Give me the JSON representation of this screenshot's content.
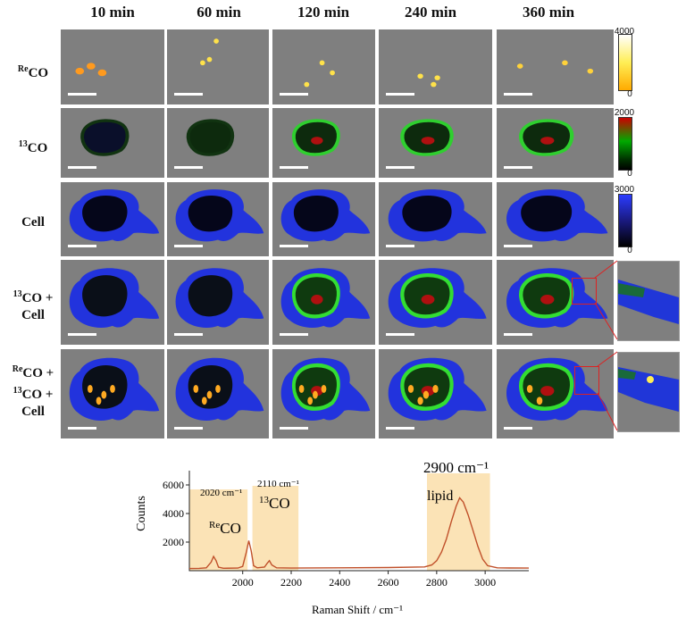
{
  "columns": [
    "10 min",
    "60 min",
    "120 min",
    "240 min",
    "360 min"
  ],
  "rows": [
    {
      "pre": "",
      "sup": "Re",
      "main": "CO",
      "line2_sup": "",
      "line2": "",
      "line3": ""
    },
    {
      "pre": "",
      "sup": "13",
      "main": "CO",
      "line2_sup": "",
      "line2": "",
      "line3": ""
    },
    {
      "pre": "",
      "sup": "",
      "main": "Cell",
      "line2_sup": "",
      "line2": "",
      "line3": ""
    },
    {
      "pre": "",
      "sup": "13",
      "main": "CO +",
      "line2_sup": "",
      "line2": "Cell",
      "line3": ""
    },
    {
      "pre": "",
      "sup": "Re",
      "main": "CO +",
      "line2_sup": "13",
      "line2": "CO +",
      "line3": "Cell"
    }
  ],
  "colorbars": [
    {
      "max": "4000",
      "min": "0",
      "colors": [
        "#ffffff",
        "#ffee55",
        "#ffaa00"
      ]
    },
    {
      "max": "2000",
      "min": "0",
      "colors": [
        "#cc0000",
        "#00aa00",
        "#000000"
      ]
    },
    {
      "max": "3000",
      "min": "0",
      "colors": [
        "#2b3cff",
        "#1a1a80",
        "#000000"
      ]
    }
  ],
  "spectrum": {
    "labels": {
      "peak1_wavenumber": "2020 cm⁻¹",
      "peak1_species_sup": "Re",
      "peak1_species": "CO",
      "peak2_wavenumber": "2110 cm⁻¹",
      "peak2_species_sup": "13",
      "peak2_species": "CO",
      "peak3_wavenumber": "2900 cm⁻¹",
      "peak3_species": "lipid"
    }
  },
  "chart_data": {
    "type": "line",
    "xlabel": "Raman Shift / cm⁻¹",
    "ylabel": "Counts",
    "xlim": [
      1780,
      3180
    ],
    "ylim": [
      0,
      7000
    ],
    "xticks": [
      2000,
      2200,
      2400,
      2600,
      2800,
      3000
    ],
    "yticks": [
      2000,
      4000,
      6000
    ],
    "highlight_bands": [
      [
        1780,
        2020
      ],
      [
        2040,
        2230
      ],
      [
        2760,
        3020
      ]
    ],
    "line_color": "#c0502a",
    "x": [
      1780,
      1820,
      1850,
      1870,
      1880,
      1890,
      1900,
      1920,
      1980,
      2000,
      2015,
      2025,
      2035,
      2045,
      2060,
      2090,
      2100,
      2110,
      2120,
      2140,
      2200,
      2400,
      2600,
      2750,
      2780,
      2800,
      2820,
      2840,
      2860,
      2880,
      2895,
      2910,
      2930,
      2950,
      2970,
      2990,
      3010,
      3050,
      3100,
      3180
    ],
    "y": [
      150,
      160,
      200,
      600,
      1000,
      700,
      250,
      170,
      180,
      300,
      1300,
      2100,
      1400,
      350,
      200,
      250,
      500,
      700,
      400,
      200,
      180,
      200,
      220,
      260,
      400,
      700,
      1300,
      2200,
      3400,
      4500,
      5100,
      4800,
      3900,
      2800,
      1700,
      800,
      350,
      200,
      190,
      180
    ]
  }
}
